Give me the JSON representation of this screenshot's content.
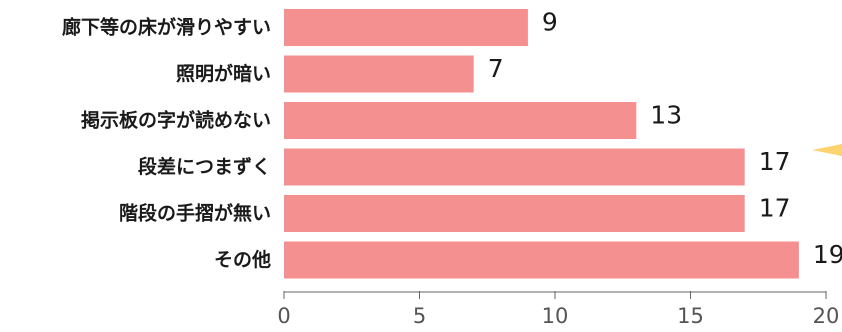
{
  "chart_data": {
    "type": "bar",
    "orientation": "horizontal",
    "categories": [
      "廊下等の床が滑りやすい",
      "照明が暗い",
      "掲示板の字が読めない",
      "段差につまずく",
      "階段の手摺が無い",
      "その他"
    ],
    "values": [
      9,
      7,
      13,
      17,
      17,
      19
    ],
    "xlim": [
      0,
      20
    ],
    "xticks": [
      "0",
      "5",
      "10",
      "15",
      "20"
    ],
    "bar_color": "#f4908f",
    "grid": false,
    "legend": "none"
  }
}
